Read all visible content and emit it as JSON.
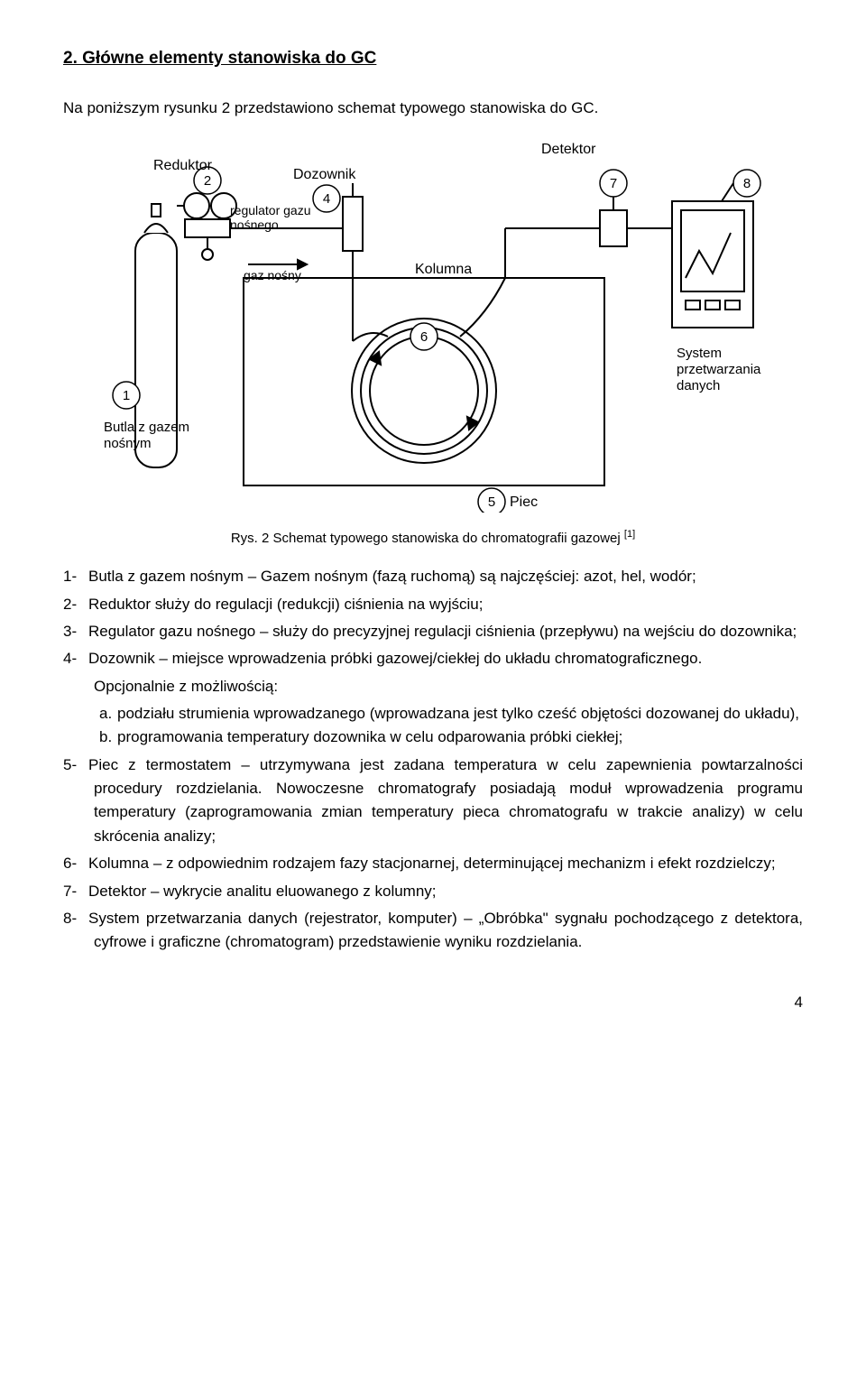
{
  "heading": "2. Główne elementy stanowiska do GC",
  "intro": "Na poniższym rysunku 2 przedstawiono schemat typowego stanowiska do GC.",
  "figure": {
    "labels": {
      "detektor": "Detektor",
      "reduktor": "Reduktor",
      "dozownik": "Dozownik",
      "regulator": "regulator gazu\nnośnego",
      "gaz_nosny": "gaz nośny",
      "kolumna": "Kolumna",
      "butla": "Butla z gazem\nnośnym",
      "system": "System\nprzetwarzania\ndanych",
      "piec": "Piec"
    },
    "circles": [
      "1",
      "2",
      "4",
      "5",
      "6",
      "7",
      "8"
    ],
    "stroke": "#000000",
    "fill": "#ffffff"
  },
  "caption_prefix": "Rys. 2 Schemat typowego stanowiska do chromatografii gazowej ",
  "caption_ref": "[1]",
  "items": [
    {
      "n": "1-",
      "text": "Butla z gazem nośnym – Gazem nośnym (fazą ruchomą) są najczęściej: azot, hel, wodór;"
    },
    {
      "n": "2-",
      "text": "Reduktor służy do regulacji (redukcji) ciśnienia na wyjściu;"
    },
    {
      "n": "3-",
      "text": "Regulator gazu nośnego – służy do precyzyjnej regulacji ciśnienia (przepływu) na wejściu do dozownika;"
    },
    {
      "n": "4-",
      "text": "Dozownik – miejsce wprowadzenia próbki gazowej/ciekłej do układu chromatograficznego. Opcjonalnie z możliwością:",
      "sub": [
        {
          "s": "a.",
          "t": "podziału strumienia wprowadzanego (wprowadzana jest tylko cześć objętości dozowanej do układu),"
        },
        {
          "s": "b.",
          "t": "programowania temperatury dozownika w celu odparowania próbki ciekłej;"
        }
      ]
    },
    {
      "n": "5-",
      "text": "Piec z termostatem – utrzymywana jest zadana temperatura w celu zapewnienia powtarzalności procedury rozdzielania. Nowoczesne chromatografy posiadają moduł wprowadzenia programu temperatury (zaprogramowania zmian temperatury pieca chromatografu w trakcie analizy) w celu skrócenia analizy;"
    },
    {
      "n": "6-",
      "text": "Kolumna – z odpowiednim rodzajem fazy stacjonarnej, determinującej mechanizm i efekt rozdzielczy;"
    },
    {
      "n": "7-",
      "text": "Detektor – wykrycie analitu eluowanego z kolumny;"
    },
    {
      "n": "8-",
      "text": "System przetwarzania danych (rejestrator, komputer) – „Obróbka\" sygnału pochodzącego z detektora, cyfrowe i graficzne (chromatogram) przedstawienie wyniku rozdzielania."
    }
  ],
  "page": "4"
}
